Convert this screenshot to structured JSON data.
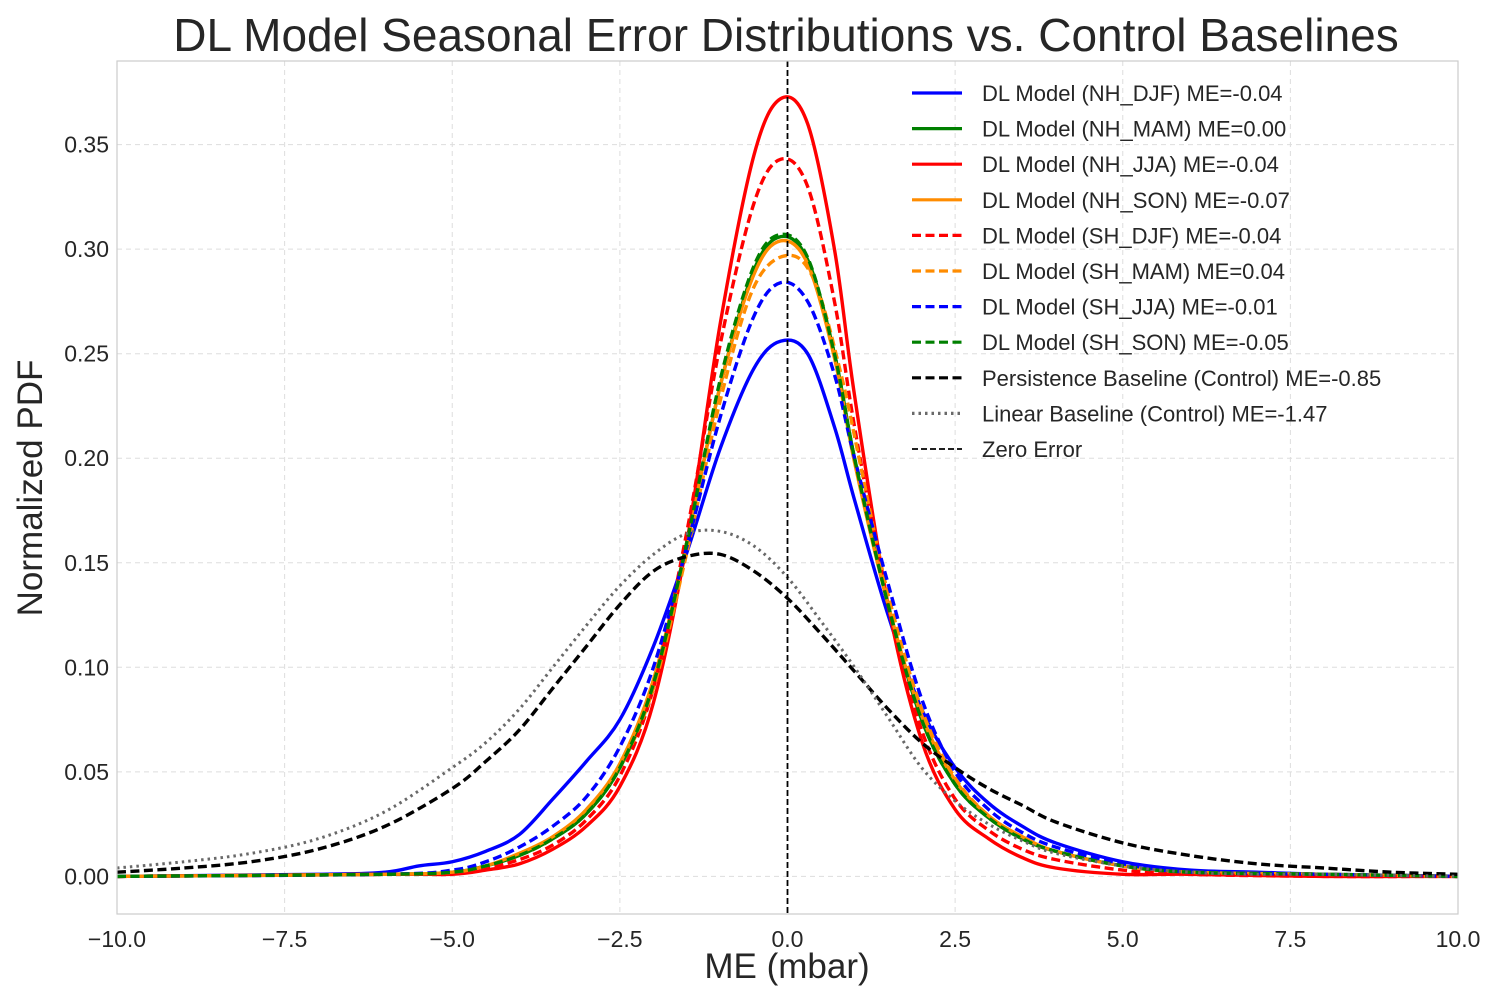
{
  "chart_data": {
    "type": "line",
    "title": "DL Model Seasonal Error Distributions vs. Control Baselines",
    "xlabel": "ME (mbar)",
    "ylabel": "Normalized PDF",
    "xlim": [
      -10,
      10
    ],
    "ylim": [
      -0.018,
      0.39
    ],
    "x_ticks": [
      -10,
      -7.5,
      -5,
      -2.5,
      0,
      2.5,
      5,
      7.5,
      10
    ],
    "x_tick_labels": [
      "−10.0",
      "−7.5",
      "−5.0",
      "−2.5",
      "0.0",
      "2.5",
      "5.0",
      "7.5",
      "10.0"
    ],
    "y_ticks": [
      0,
      0.05,
      0.1,
      0.15,
      0.2,
      0.25,
      0.3,
      0.35
    ],
    "y_tick_labels": [
      "0.00",
      "0.05",
      "0.10",
      "0.15",
      "0.20",
      "0.25",
      "0.30",
      "0.35"
    ],
    "grid": true,
    "legend_position": "top-right",
    "series": [
      {
        "name": "DL Model (NH_DJF) ME=-0.04",
        "color": "#0000ff",
        "style": "solid",
        "x": [
          -10,
          -7,
          -6,
          -5.5,
          -5,
          -4.5,
          -4,
          -3.5,
          -3,
          -2.5,
          -2,
          -1.5,
          -1,
          -0.5,
          -0.1,
          0.3,
          0.7,
          1,
          1.5,
          2,
          2.5,
          3,
          3.5,
          4,
          5,
          6,
          7,
          8,
          10
        ],
        "y": [
          0,
          0.001,
          0.002,
          0.005,
          0.007,
          0.012,
          0.02,
          0.037,
          0.055,
          0.075,
          0.11,
          0.155,
          0.205,
          0.243,
          0.256,
          0.25,
          0.215,
          0.18,
          0.125,
          0.08,
          0.052,
          0.035,
          0.024,
          0.016,
          0.007,
          0.003,
          0.002,
          0.001,
          0
        ]
      },
      {
        "name": "DL Model (NH_MAM) ME=0.00",
        "color": "#008000",
        "style": "solid",
        "x": [
          -10,
          -6,
          -5,
          -4.5,
          -4,
          -3.5,
          -3,
          -2.5,
          -2,
          -1.5,
          -1,
          -0.5,
          -0.1,
          0.3,
          0.7,
          1,
          1.5,
          2,
          2.5,
          3,
          3.5,
          4,
          5,
          6,
          8,
          10
        ],
        "y": [
          0,
          0.001,
          0.002,
          0.005,
          0.01,
          0.018,
          0.03,
          0.052,
          0.092,
          0.16,
          0.235,
          0.29,
          0.306,
          0.295,
          0.25,
          0.2,
          0.13,
          0.075,
          0.044,
          0.028,
          0.018,
          0.012,
          0.005,
          0.002,
          0.001,
          0
        ]
      },
      {
        "name": "DL Model (NH_JJA) ME=-0.04",
        "color": "#ff0000",
        "style": "solid",
        "x": [
          -10,
          -6,
          -5,
          -4.5,
          -4,
          -3.5,
          -3,
          -2.5,
          -2,
          -1.5,
          -1,
          -0.5,
          -0.1,
          0.3,
          0.7,
          1,
          1.5,
          2,
          2.5,
          3,
          3.5,
          4,
          5,
          6,
          8,
          10
        ],
        "y": [
          0,
          0.001,
          0.001,
          0.003,
          0.006,
          0.013,
          0.024,
          0.043,
          0.083,
          0.16,
          0.265,
          0.345,
          0.372,
          0.36,
          0.3,
          0.23,
          0.13,
          0.065,
          0.032,
          0.018,
          0.009,
          0.004,
          0.001,
          0.001,
          0,
          0
        ]
      },
      {
        "name": "DL Model (NH_SON) ME=-0.07",
        "color": "#ff8c00",
        "style": "solid",
        "x": [
          -10,
          -6,
          -5,
          -4.5,
          -4,
          -3.5,
          -3,
          -2.5,
          -2,
          -1.5,
          -1,
          -0.5,
          -0.1,
          0.3,
          0.7,
          1,
          1.5,
          2,
          2.5,
          3,
          3.5,
          4,
          5,
          6,
          8,
          10
        ],
        "y": [
          0,
          0.001,
          0.002,
          0.005,
          0.011,
          0.019,
          0.032,
          0.054,
          0.094,
          0.16,
          0.235,
          0.288,
          0.304,
          0.293,
          0.248,
          0.198,
          0.13,
          0.077,
          0.046,
          0.029,
          0.019,
          0.012,
          0.005,
          0.002,
          0.001,
          0
        ]
      },
      {
        "name": "DL Model (SH_DJF) ME=-0.04",
        "color": "#ff0000",
        "style": "dashed",
        "x": [
          -10,
          -6,
          -5,
          -4.5,
          -4,
          -3.5,
          -3,
          -2.5,
          -2,
          -1.5,
          -1,
          -0.5,
          -0.1,
          0.3,
          0.7,
          1,
          1.5,
          2,
          2.5,
          3,
          3.5,
          4,
          5,
          6,
          8,
          10
        ],
        "y": [
          0,
          0.001,
          0.002,
          0.004,
          0.008,
          0.015,
          0.027,
          0.048,
          0.09,
          0.165,
          0.255,
          0.322,
          0.343,
          0.33,
          0.275,
          0.215,
          0.13,
          0.07,
          0.037,
          0.022,
          0.013,
          0.008,
          0.003,
          0.001,
          0,
          0
        ]
      },
      {
        "name": "DL Model (SH_MAM) ME=0.04",
        "color": "#ff8c00",
        "style": "dashed",
        "x": [
          -10,
          -6,
          -5,
          -4.5,
          -4,
          -3.5,
          -3,
          -2.5,
          -2,
          -1.5,
          -1,
          -0.5,
          0,
          0.4,
          0.8,
          1.1,
          1.5,
          2,
          2.5,
          3,
          3.5,
          4,
          5,
          6,
          8,
          10
        ],
        "y": [
          0,
          0.001,
          0.002,
          0.005,
          0.01,
          0.018,
          0.031,
          0.052,
          0.09,
          0.155,
          0.228,
          0.282,
          0.297,
          0.285,
          0.24,
          0.195,
          0.135,
          0.08,
          0.047,
          0.029,
          0.018,
          0.012,
          0.005,
          0.002,
          0.001,
          0
        ]
      },
      {
        "name": "DL Model (SH_JJA) ME=-0.01",
        "color": "#0000ff",
        "style": "dashed",
        "x": [
          -10,
          -6,
          -5,
          -4.5,
          -4,
          -3.5,
          -3,
          -2.5,
          -2,
          -1.5,
          -1,
          -0.5,
          -0.1,
          0.3,
          0.7,
          1,
          1.5,
          2,
          2.5,
          3,
          3.5,
          4,
          5,
          6,
          8,
          10
        ],
        "y": [
          0,
          0.001,
          0.003,
          0.007,
          0.014,
          0.024,
          0.038,
          0.062,
          0.1,
          0.158,
          0.22,
          0.268,
          0.284,
          0.275,
          0.24,
          0.2,
          0.14,
          0.085,
          0.05,
          0.032,
          0.021,
          0.014,
          0.006,
          0.002,
          0.001,
          0
        ]
      },
      {
        "name": "DL Model (SH_SON) ME=-0.05",
        "color": "#008000",
        "style": "dashed",
        "x": [
          -10,
          -6,
          -5,
          -4.5,
          -4,
          -3.5,
          -3,
          -2.5,
          -2,
          -1.5,
          -1,
          -0.5,
          -0.1,
          0.3,
          0.7,
          1,
          1.5,
          2,
          2.5,
          3,
          3.5,
          4,
          5,
          6,
          8,
          10
        ],
        "y": [
          0,
          0.001,
          0.002,
          0.005,
          0.01,
          0.018,
          0.03,
          0.052,
          0.092,
          0.16,
          0.238,
          0.292,
          0.307,
          0.296,
          0.25,
          0.2,
          0.13,
          0.075,
          0.044,
          0.028,
          0.018,
          0.012,
          0.005,
          0.002,
          0.001,
          0
        ]
      },
      {
        "name": "Persistence Baseline (Control) ME=-0.85",
        "color": "#000000",
        "style": "dashed",
        "x": [
          -10,
          -9,
          -8,
          -7,
          -6,
          -5,
          -4.5,
          -4,
          -3.5,
          -3,
          -2.5,
          -2,
          -1.5,
          -1,
          -0.5,
          0,
          0.5,
          1,
          1.5,
          2,
          2.5,
          3,
          3.5,
          4,
          5,
          6,
          7,
          8,
          9,
          10
        ],
        "y": [
          0.002,
          0.004,
          0.007,
          0.013,
          0.024,
          0.042,
          0.055,
          0.07,
          0.09,
          0.11,
          0.13,
          0.146,
          0.153,
          0.154,
          0.146,
          0.133,
          0.116,
          0.098,
          0.08,
          0.064,
          0.052,
          0.042,
          0.034,
          0.026,
          0.016,
          0.01,
          0.006,
          0.004,
          0.002,
          0.001
        ]
      },
      {
        "name": "Linear Baseline (Control) ME=-1.47",
        "color": "#696969",
        "style": "dotted",
        "x": [
          -10,
          -9,
          -8,
          -7,
          -6,
          -5,
          -4.5,
          -4,
          -3.5,
          -3,
          -2.5,
          -2,
          -1.5,
          -1,
          -0.5,
          0,
          0.5,
          1,
          1.5,
          2,
          2.5,
          3,
          3.5,
          4,
          5,
          6,
          7,
          8,
          10
        ],
        "y": [
          0.004,
          0.007,
          0.011,
          0.018,
          0.031,
          0.052,
          0.064,
          0.08,
          0.1,
          0.12,
          0.139,
          0.154,
          0.164,
          0.165,
          0.158,
          0.143,
          0.122,
          0.1,
          0.076,
          0.052,
          0.036,
          0.025,
          0.017,
          0.011,
          0.005,
          0.002,
          0.001,
          0.001,
          0
        ]
      }
    ],
    "reference_line": {
      "name": "Zero Error",
      "x": 0,
      "color": "#000000",
      "style": "dashed"
    }
  }
}
